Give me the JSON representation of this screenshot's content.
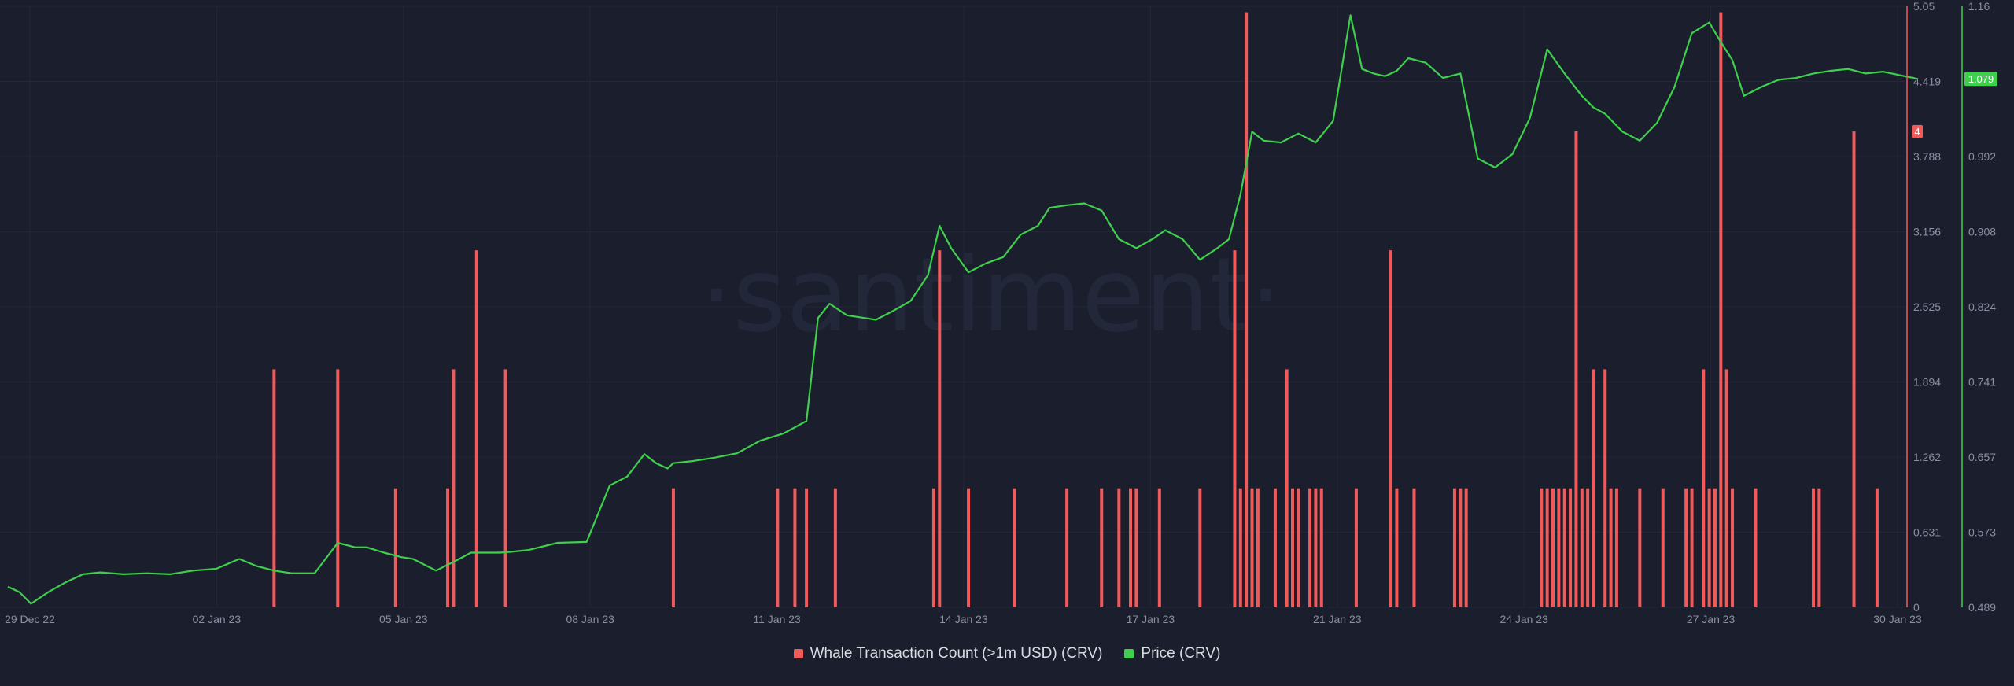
{
  "watermark": "·santiment·",
  "colors": {
    "background": "#1b1e2c",
    "whale": "#f05a5a",
    "price": "#3ecf4c",
    "grid": "#232738",
    "axis_text": "#8a8fa3"
  },
  "chart_data": {
    "type": "bar+line",
    "x_tick_labels": [
      "29 Dec 22",
      "02 Jan 23",
      "05 Jan 23",
      "08 Jan 23",
      "11 Jan 23",
      "14 Jan 23",
      "17 Jan 23",
      "21 Jan 23",
      "24 Jan 23",
      "27 Jan 23",
      "30 Jan 23"
    ],
    "x_range": [
      "29 Dec 22",
      "30 Jan 23"
    ],
    "left_axis": {
      "tick_labels": [
        "0",
        "0.631",
        "1.262",
        "1.894",
        "2.525",
        "3.156",
        "3.788",
        "4.419",
        "5.05"
      ],
      "range": [
        0,
        5.05
      ],
      "badge": "4"
    },
    "right_axis": {
      "tick_labels": [
        "0.489",
        "0.573",
        "0.657",
        "0.741",
        "0.824",
        "0.908",
        "0.992",
        "1.076",
        "1.16"
      ],
      "range": [
        0.489,
        1.16
      ],
      "badge": "1.079"
    },
    "legend_position": "bottom-center",
    "grid": true,
    "series": [
      {
        "name": "Whale Transaction Count (>1m USD) (CRV)",
        "type": "bar",
        "color": "#f05a5a",
        "x_days": [
          4.6,
          5.7,
          6.7,
          7.6,
          7.7,
          8.1,
          8.6,
          11.5,
          13.3,
          13.6,
          13.8,
          14.3,
          16.0,
          16.1,
          16.6,
          17.4,
          18.3,
          18.9,
          19.2,
          19.4,
          19.5,
          19.9,
          20.6,
          21.2,
          21.3,
          21.4,
          21.5,
          21.6,
          21.9,
          22.1,
          22.2,
          22.3,
          22.5,
          22.6,
          22.7,
          23.3,
          23.9,
          24.0,
          24.3,
          25.0,
          25.1,
          25.2,
          26.5,
          26.6,
          26.7,
          26.8,
          26.9,
          27.0,
          27.1,
          27.2,
          27.3,
          27.4,
          27.6,
          27.7,
          27.8,
          28.2,
          28.6,
          29.0,
          29.1,
          29.3,
          29.4,
          29.5,
          29.6,
          29.7,
          29.8,
          30.2,
          31.2,
          31.3,
          31.9,
          32.3
        ],
        "values": [
          2,
          2,
          1,
          1,
          2,
          3,
          2,
          1,
          1,
          1,
          1,
          1,
          1,
          3,
          1,
          1,
          1,
          1,
          1,
          1,
          1,
          1,
          1,
          3,
          1,
          5,
          1,
          1,
          1,
          2,
          1,
          1,
          1,
          1,
          1,
          1,
          3,
          1,
          1,
          1,
          1,
          1,
          1,
          1,
          1,
          1,
          1,
          1,
          4,
          1,
          1,
          2,
          2,
          1,
          1,
          1,
          1,
          1,
          1,
          2,
          1,
          1,
          5,
          2,
          1,
          1,
          1,
          1,
          4,
          1
        ]
      },
      {
        "name": "Price (CRV)",
        "type": "line",
        "color": "#3ecf4c",
        "x_days": [
          0,
          0.2,
          0.4,
          0.7,
          1.0,
          1.3,
          1.6,
          2.0,
          2.4,
          2.8,
          3.2,
          3.6,
          4.0,
          4.3,
          4.6,
          4.9,
          5.3,
          5.7,
          6.0,
          6.2,
          6.5,
          6.8,
          7.0,
          7.4,
          7.8,
          8.0,
          8.3,
          8.5,
          8.7,
          9.0,
          9.5,
          10.0,
          10.4,
          10.7,
          11.0,
          11.2,
          11.4,
          11.5,
          11.8,
          12.2,
          12.6,
          13.0,
          13.4,
          13.8,
          14.0,
          14.2,
          14.5,
          14.8,
          15.0,
          15.3,
          15.6,
          15.9,
          16.1,
          16.3,
          16.6,
          16.9,
          17.2,
          17.5,
          17.8,
          18.0,
          18.3,
          18.6,
          18.9,
          19.2,
          19.5,
          19.8,
          20.0,
          20.3,
          20.6,
          20.9,
          21.1,
          21.3,
          21.5,
          21.7,
          22.0,
          22.3,
          22.6,
          22.9,
          23.2,
          23.4,
          23.6,
          23.8,
          24.0,
          24.2,
          24.5,
          24.8,
          25.1,
          25.4,
          25.7,
          26.0,
          26.3,
          26.6,
          26.9,
          27.2,
          27.4,
          27.6,
          27.9,
          28.2,
          28.5,
          28.8,
          29.1,
          29.4,
          29.6,
          29.8,
          30.0,
          30.3,
          30.6,
          30.9,
          31.2,
          31.5,
          31.8,
          32.1,
          32.4,
          32.7,
          33.0
        ],
        "values": [
          0.512,
          0.506,
          0.493,
          0.506,
          0.517,
          0.526,
          0.528,
          0.526,
          0.527,
          0.526,
          0.53,
          0.532,
          0.543,
          0.535,
          0.53,
          0.527,
          0.527,
          0.561,
          0.556,
          0.556,
          0.55,
          0.545,
          0.543,
          0.53,
          0.543,
          0.55,
          0.55,
          0.55,
          0.551,
          0.553,
          0.561,
          0.562,
          0.625,
          0.635,
          0.66,
          0.65,
          0.644,
          0.65,
          0.652,
          0.656,
          0.661,
          0.675,
          0.683,
          0.697,
          0.812,
          0.828,
          0.815,
          0.812,
          0.81,
          0.82,
          0.831,
          0.86,
          0.915,
          0.89,
          0.863,
          0.873,
          0.88,
          0.905,
          0.915,
          0.935,
          0.938,
          0.94,
          0.932,
          0.9,
          0.89,
          0.901,
          0.91,
          0.9,
          0.877,
          0.89,
          0.9,
          0.95,
          1.02,
          1.01,
          1.008,
          1.018,
          1.008,
          1.032,
          1.15,
          1.09,
          1.085,
          1.082,
          1.088,
          1.102,
          1.097,
          1.08,
          1.085,
          0.99,
          0.98,
          0.995,
          1.035,
          1.112,
          1.085,
          1.06,
          1.047,
          1.04,
          1.02,
          1.01,
          1.03,
          1.07,
          1.13,
          1.142,
          1.12,
          1.1,
          1.06,
          1.07,
          1.078,
          1.08,
          1.085,
          1.088,
          1.09,
          1.085,
          1.087,
          1.083,
          1.079
        ]
      }
    ]
  }
}
